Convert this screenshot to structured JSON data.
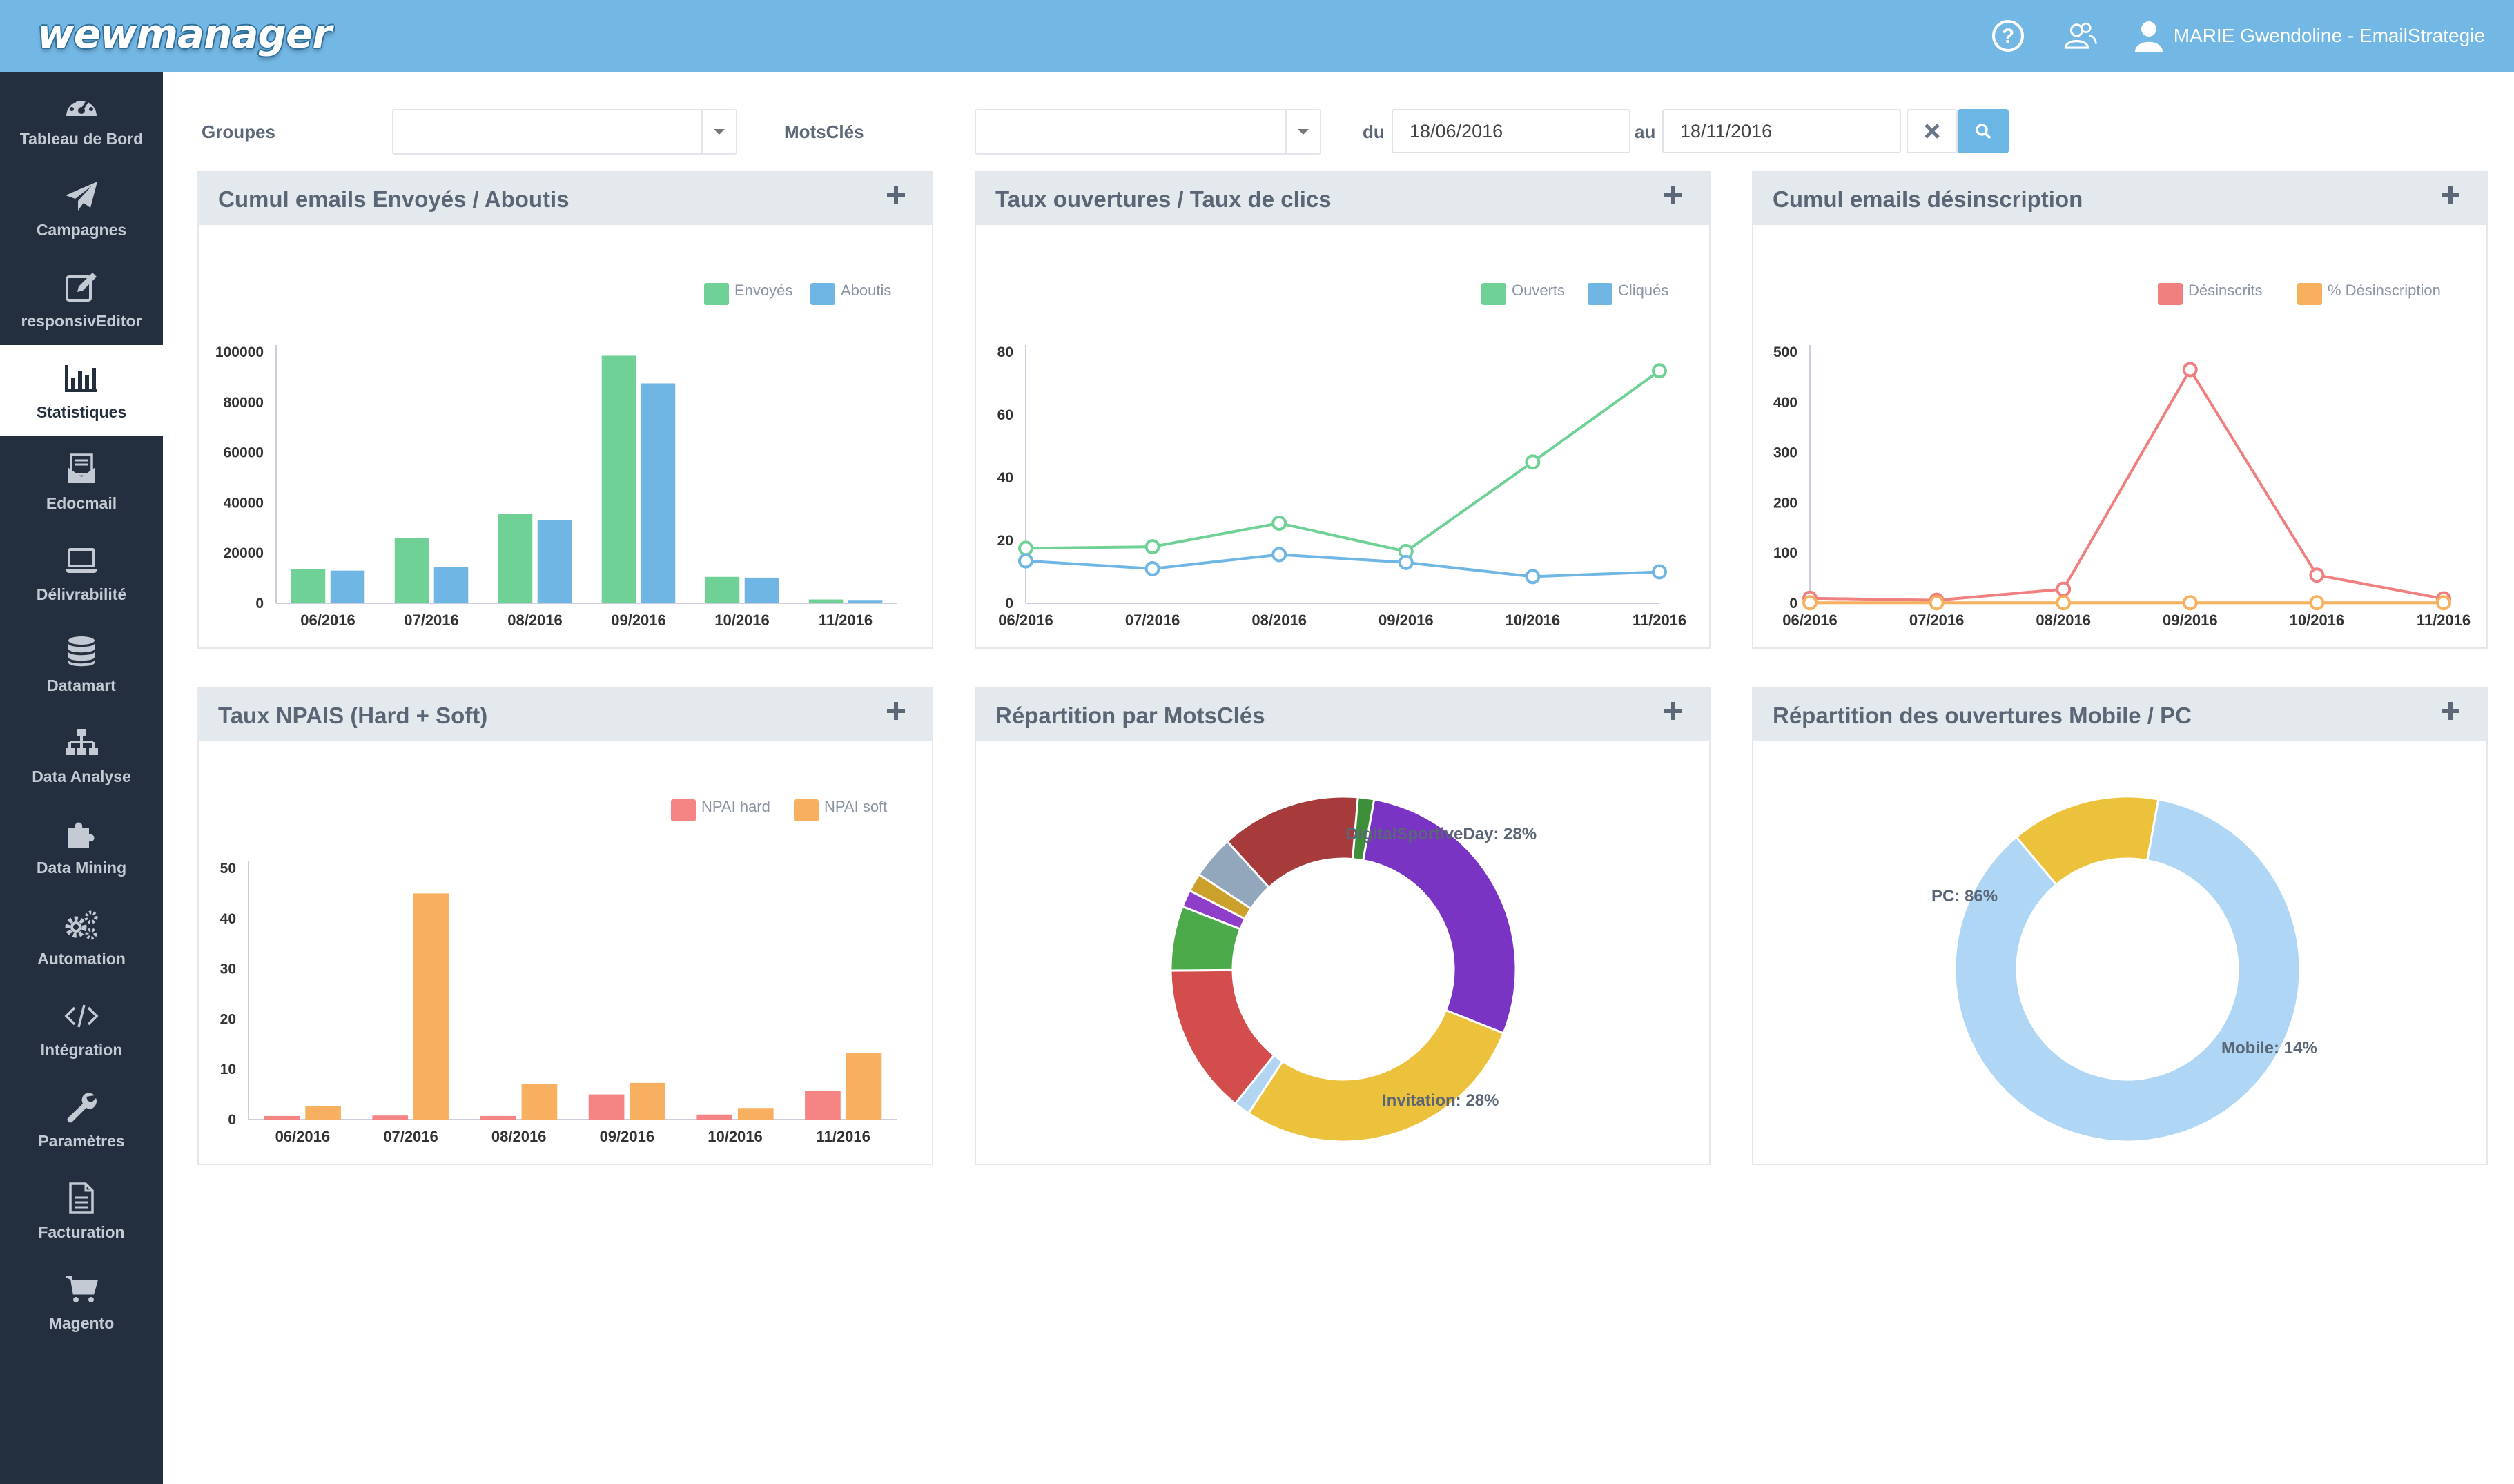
{
  "app": {
    "logo_text_1": "wew",
    "logo_text_2": "manager",
    "user_name": "MARIE Gwendoline - EmailStrategie"
  },
  "sidebar": {
    "items": [
      {
        "label": "Tableau de Bord",
        "icon": "dashboard-icon"
      },
      {
        "label": "Campagnes",
        "icon": "paper-plane-icon"
      },
      {
        "label": "responsivEditor",
        "icon": "edit-icon"
      },
      {
        "label": "Statistiques",
        "icon": "bar-chart-icon",
        "active": true
      },
      {
        "label": "Edocmail",
        "icon": "envelope-doc-icon"
      },
      {
        "label": "Délivrabilité",
        "icon": "laptop-icon"
      },
      {
        "label": "Datamart",
        "icon": "database-icon"
      },
      {
        "label": "Data Analyse",
        "icon": "sitemap-icon"
      },
      {
        "label": "Data Mining",
        "icon": "puzzle-icon"
      },
      {
        "label": "Automation",
        "icon": "gears-icon"
      },
      {
        "label": "Intégration",
        "icon": "code-icon"
      },
      {
        "label": "Paramètres",
        "icon": "wrench-icon"
      },
      {
        "label": "Facturation",
        "icon": "file-icon"
      },
      {
        "label": "Magento",
        "icon": "cart-icon"
      }
    ]
  },
  "filters": {
    "groupes_label": "Groupes",
    "groupes_value": "",
    "motscles_label": "MotsClés",
    "motscles_value": "",
    "du_label": "du",
    "date_from": "18/06/2016",
    "au_label": "au",
    "date_to": "18/11/2016"
  },
  "panels": {
    "p1": {
      "title": "Cumul emails Envoyés / Aboutis"
    },
    "p2": {
      "title": "Taux ouvertures / Taux de clics"
    },
    "p3": {
      "title": "Cumul emails désinscription"
    },
    "p4": {
      "title": "Taux NPAIS (Hard + Soft)"
    },
    "p5": {
      "title": "Répartition par MotsClés"
    },
    "p6": {
      "title": "Répartition des ouvertures Mobile / PC"
    }
  },
  "chart_data": [
    {
      "type": "bar",
      "categories": [
        "06/2016",
        "07/2016",
        "08/2016",
        "09/2016",
        "10/2016",
        "11/2016"
      ],
      "series": [
        {
          "name": "Envoyés",
          "values": [
            13500,
            26000,
            35500,
            98500,
            10500,
            1500
          ],
          "color": "#6fd196"
        },
        {
          "name": "Aboutis",
          "values": [
            13000,
            14500,
            33000,
            87500,
            10200,
            1300
          ],
          "color": "#6fb6e4"
        }
      ],
      "ylim": [
        0,
        100000
      ],
      "yticks": [
        "0",
        "20000",
        "40000",
        "60000",
        "80000",
        "100000"
      ],
      "legend": "top-right"
    },
    {
      "type": "line",
      "categories": [
        "06/2016",
        "07/2016",
        "08/2016",
        "09/2016",
        "10/2016",
        "11/2016"
      ],
      "series": [
        {
          "name": "Ouverts",
          "values": [
            17.5,
            18,
            25.5,
            16.5,
            45,
            74
          ],
          "color": "#6fd196"
        },
        {
          "name": "Cliqués",
          "values": [
            13.5,
            11,
            15.5,
            13,
            8.5,
            10
          ],
          "color": "#6fb6e4"
        }
      ],
      "ylim": [
        0,
        80
      ],
      "yticks": [
        "0",
        "20",
        "40",
        "60",
        "80"
      ],
      "legend": "top-right"
    },
    {
      "type": "line",
      "categories": [
        "06/2016",
        "07/2016",
        "08/2016",
        "09/2016",
        "10/2016",
        "11/2016"
      ],
      "series": [
        {
          "name": "Désinscrits",
          "values": [
            10,
            6,
            28,
            465,
            56,
            9
          ],
          "color": "#f08080"
        },
        {
          "name": "% Désinscription",
          "values": [
            1,
            1,
            1,
            1,
            1,
            1
          ],
          "color": "#f6b05e"
        }
      ],
      "ylim": [
        0,
        500
      ],
      "yticks": [
        "0",
        "100",
        "200",
        "300",
        "400",
        "500"
      ],
      "legend": "top-right"
    },
    {
      "type": "bar",
      "categories": [
        "06/2016",
        "07/2016",
        "08/2016",
        "09/2016",
        "10/2016",
        "11/2016"
      ],
      "series": [
        {
          "name": "NPAI hard",
          "values": [
            0.7,
            0.8,
            0.7,
            5,
            1,
            5.7
          ],
          "color": "#f58585"
        },
        {
          "name": "NPAI soft",
          "values": [
            2.7,
            45,
            7,
            7.3,
            2.3,
            13.3
          ],
          "color": "#f6b060"
        }
      ],
      "ylim": [
        0,
        50
      ],
      "yticks": [
        "0",
        "10",
        "20",
        "30",
        "40",
        "50"
      ],
      "legend": "top-right"
    },
    {
      "type": "pie",
      "donut": true,
      "slices": [
        {
          "value": 28,
          "color": "#7a34c4",
          "label": "DigitalSportiveDay: 28%"
        },
        {
          "value": 28,
          "color": "#ecc13c",
          "label": "Invitation: 28%"
        },
        {
          "value": 1.5,
          "color": "#b2d6f2",
          "label": ""
        },
        {
          "value": 14,
          "color": "#d44d4d",
          "label": ""
        },
        {
          "value": 6,
          "color": "#4caa4a",
          "label": ""
        },
        {
          "value": 1.6,
          "color": "#8e3ec8",
          "label": ""
        },
        {
          "value": 1.7,
          "color": "#cba12c",
          "label": ""
        },
        {
          "value": 4,
          "color": "#92a7bc",
          "label": ""
        },
        {
          "value": 13,
          "color": "#a73b3b",
          "label": ""
        },
        {
          "value": 1.5,
          "color": "#3d8f3a",
          "label": ""
        }
      ]
    },
    {
      "type": "pie",
      "donut": true,
      "slices": [
        {
          "value": 86,
          "color": "#afd6f4",
          "label": "PC: 86%"
        },
        {
          "value": 14,
          "color": "#ecc13c",
          "label": "Mobile: 14%"
        }
      ]
    }
  ]
}
